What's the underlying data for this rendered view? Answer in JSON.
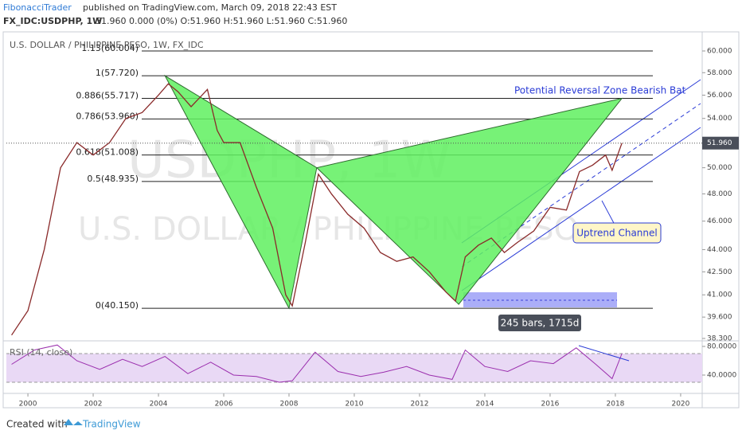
{
  "header": {
    "author": "FibonacciTrader",
    "published": "published on TradingView.com, March 09, 2018 22:43 EST",
    "symbol": "FX_IDC:USDPHP, 1W",
    "quote": "51.960 0.000 (0%) O:51.960 H:51.960 L:51.960 C:51.960"
  },
  "chart_data": {
    "type": "line",
    "title": "U.S. DOLLAR / PHILIPPINE PESO, 1W, FX_IDC",
    "watermark": [
      "USDPHP, 1W",
      "U.S. DOLLAR / PHILIPPINE PESO"
    ],
    "log_scale": true,
    "color": "#8a2a2a",
    "xlim": [
      1999.34,
      2020.66
    ],
    "ylim": [
      38.3,
      60
    ],
    "xticks": [
      2000,
      2002,
      2004,
      2006,
      2008,
      2010,
      2012,
      2014,
      2016,
      2018,
      2020
    ],
    "yticks": [
      {
        "value": 60,
        "label": "60.000"
      },
      {
        "value": 58,
        "label": "58.000"
      },
      {
        "value": 56,
        "label": "56.000"
      },
      {
        "value": 54,
        "label": "54.000"
      },
      {
        "value": 50,
        "label": "50.000"
      },
      {
        "value": 48,
        "label": "48.000"
      },
      {
        "value": 46,
        "label": "46.000"
      },
      {
        "value": 44,
        "label": "44.000"
      },
      {
        "value": 42.5,
        "label": "42.500"
      },
      {
        "value": 41,
        "label": "41.000"
      },
      {
        "value": 39.6,
        "label": "39.600"
      },
      {
        "value": 38.3,
        "label": "38.300"
      }
    ],
    "last_price": {
      "value": 51.96,
      "label": "51.960"
    },
    "x": [
      1999.5,
      2000,
      2000.5,
      2001,
      2001.5,
      2002,
      2002.5,
      2003,
      2003.5,
      2004,
      2004.3,
      2004.6,
      2005,
      2005.5,
      2005.8,
      2006,
      2006.5,
      2007,
      2007.5,
      2007.9,
      2008.1,
      2008.5,
      2008.9,
      2009.3,
      2009.8,
      2010.3,
      2010.8,
      2011.3,
      2011.8,
      2012.3,
      2012.8,
      2013.1,
      2013.4,
      2013.8,
      2014.2,
      2014.6,
      2015,
      2015.5,
      2016,
      2016.5,
      2016.9,
      2017.3,
      2017.7,
      2017.9,
      2018.2
    ],
    "values": [
      38.5,
      40,
      44,
      50,
      52,
      51,
      52,
      54,
      54.5,
      56,
      57,
      56.3,
      55,
      56.5,
      53,
      52,
      52,
      48.5,
      45.5,
      41,
      40.3,
      44.5,
      49.5,
      48,
      46.5,
      45.5,
      43.8,
      43.2,
      43.5,
      42.5,
      41.2,
      40.6,
      43.5,
      44.3,
      44.8,
      43.8,
      44.5,
      45.3,
      47,
      46.8,
      49.7,
      50.2,
      51,
      49.8,
      51.96
    ],
    "fib_levels": [
      {
        "value": 60.004,
        "label": "1.13(60.004)"
      },
      {
        "value": 57.72,
        "label": "1(57.720)"
      },
      {
        "value": 55.717,
        "label": "0.886(55.717)"
      },
      {
        "value": 53.96,
        "label": "0.786(53.960)"
      },
      {
        "value": 51.008,
        "label": "0.618(51.008)"
      },
      {
        "value": 48.935,
        "label": "0.5(48.935)"
      },
      {
        "value": 40.15,
        "label": "0(40.150)"
      }
    ],
    "pattern": {
      "x": [
        2004.2,
        2008.0,
        2008.85,
        2013.2,
        2018.2
      ],
      "y": [
        57.72,
        40.15,
        50.0,
        40.4,
        55.72
      ]
    },
    "annotations": {
      "prz": "Potential Reversal Zone Bearish Bat",
      "channel": "Uptrend Channel",
      "range": "245 bars, 1715d"
    },
    "rsi": {
      "title": "RSI (14, close)",
      "ylim": [
        14.4,
        87.8
      ],
      "yticks": [
        {
          "value": 80,
          "label": "80.0000"
        },
        {
          "value": 40,
          "label": "40.0000"
        }
      ],
      "x": [
        1999.5,
        2000.2,
        2000.9,
        2001.5,
        2002.2,
        2002.9,
        2003.5,
        2004.2,
        2004.9,
        2005.6,
        2006.3,
        2007,
        2007.7,
        2008.1,
        2008.8,
        2009.5,
        2010.2,
        2010.9,
        2011.6,
        2012.3,
        2013,
        2013.4,
        2014,
        2014.7,
        2015.4,
        2016.1,
        2016.8,
        2017.4,
        2017.9,
        2018.2
      ],
      "values": [
        55,
        75,
        82,
        60,
        48,
        62,
        52,
        66,
        42,
        58,
        40,
        38,
        30,
        32,
        72,
        45,
        38,
        44,
        52,
        40,
        34,
        75,
        52,
        45,
        60,
        56,
        78,
        55,
        35,
        70
      ]
    }
  },
  "footer": {
    "created": "Created with",
    "brand": "TradingView"
  }
}
